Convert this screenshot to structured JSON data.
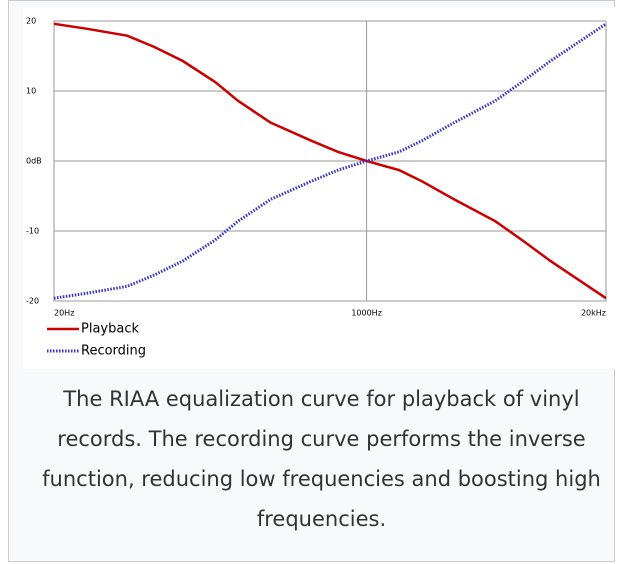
{
  "chart_data": {
    "type": "line",
    "caption": "The RIAA equalization curve for playback of vinyl records. The recording curve performs the inverse function, reducing low frequencies and boosting high frequencies.",
    "x": [
      20,
      30,
      50,
      70,
      100,
      150,
      200,
      300,
      500,
      700,
      1000,
      1500,
      2000,
      3000,
      5000,
      7000,
      10000,
      15000,
      20000
    ],
    "series": [
      {
        "name": "Playback",
        "color": "#cc0000",
        "dashed": false,
        "values": [
          19.6,
          18.9,
          17.9,
          16.3,
          14.3,
          11.3,
          8.6,
          5.5,
          2.9,
          1.3,
          0,
          -1.3,
          -2.9,
          -5.5,
          -8.6,
          -11.3,
          -14.3,
          -17.4,
          -19.6
        ]
      },
      {
        "name": "Recording",
        "color": "#3333cc",
        "dashed": true,
        "values": [
          -19.6,
          -18.9,
          -17.9,
          -16.3,
          -14.3,
          -11.3,
          -8.6,
          -5.5,
          -2.9,
          -1.3,
          0,
          1.3,
          2.9,
          5.5,
          8.6,
          11.3,
          14.3,
          17.4,
          19.6
        ]
      }
    ],
    "xlim": [
      20,
      20000
    ],
    "xlog": true,
    "xticks": [
      {
        "value": 20,
        "label": "20Hz"
      },
      {
        "value": 1000,
        "label": "1000Hz"
      },
      {
        "value": 20000,
        "label": "20kHz"
      }
    ],
    "ylim": [
      -20,
      20
    ],
    "yticks": [
      -20,
      -10,
      {
        "value": 0,
        "label": "0dB"
      },
      10,
      20
    ],
    "grid": true,
    "legend": "bottom-left"
  }
}
